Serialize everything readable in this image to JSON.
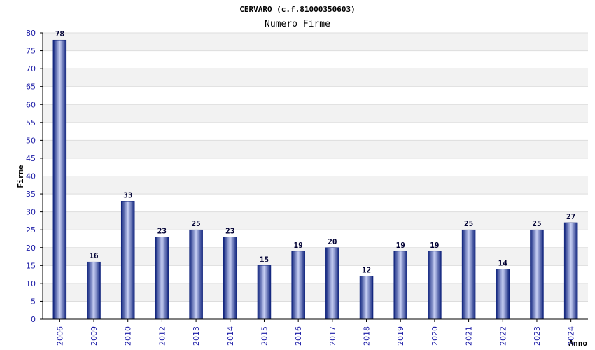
{
  "chart_data": {
    "type": "bar",
    "title": "CERVARO (c.f.81000350603)",
    "subtitle": "Numero Firme",
    "xlabel": "Anno",
    "ylabel": "Firme",
    "ylim": [
      0,
      80
    ],
    "ytick_step": 5,
    "grid": true,
    "categories": [
      "2006",
      "2009",
      "2010",
      "2012",
      "2013",
      "2014",
      "2015",
      "2016",
      "2017",
      "2018",
      "2019",
      "2020",
      "2021",
      "2022",
      "2023",
      "2024"
    ],
    "values": [
      78,
      16,
      33,
      23,
      25,
      23,
      15,
      19,
      20,
      12,
      19,
      19,
      25,
      14,
      25,
      27
    ],
    "colors": {
      "bar_dark": "#0b1f7a",
      "bar_light": "#c8d0f4",
      "band_alt": "#f2f2f2",
      "tick_text": "#1a1aa6",
      "axis": "#000000"
    }
  }
}
